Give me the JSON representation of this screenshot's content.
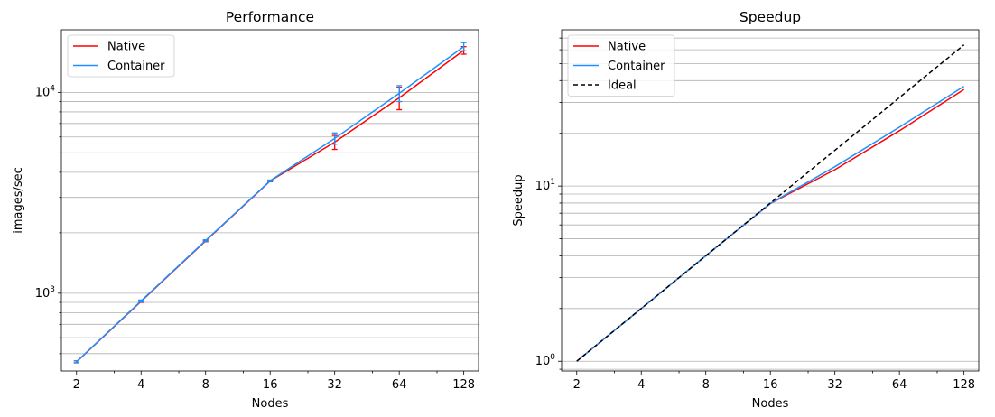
{
  "chart_data": [
    {
      "type": "line",
      "title": "Performance",
      "xlabel": "Nodes",
      "ylabel": "images/sec",
      "xscale": "log2",
      "yscale": "log10",
      "xlim": [
        1.7,
        150
      ],
      "ylim": [
        410,
        20500
      ],
      "x": [
        2,
        4,
        8,
        16,
        32,
        64,
        128
      ],
      "x_tick_labels": [
        "2",
        "4",
        "8",
        "16",
        "32",
        "64",
        "128"
      ],
      "y_ticks": [
        {
          "value": 1000,
          "base": "10",
          "exp": "3"
        },
        {
          "value": 10000,
          "base": "10",
          "exp": "4"
        }
      ],
      "grid": "y",
      "legend": "top-left",
      "series": [
        {
          "name": "Native",
          "color": "#ff0000",
          "values": [
            455,
            910,
            1820,
            3620,
            5650,
            9400,
            16200
          ],
          "errors": [
            5,
            10,
            15,
            30,
            450,
            1200,
            700
          ]
        },
        {
          "name": "Container",
          "color": "#1e90ff",
          "values": [
            456,
            915,
            1830,
            3630,
            5900,
            9900,
            16900
          ],
          "errors": [
            5,
            10,
            15,
            30,
            380,
            900,
            800
          ]
        }
      ]
    },
    {
      "type": "line",
      "title": "Speedup",
      "xlabel": "Nodes",
      "ylabel": "Speedup",
      "xscale": "log2",
      "yscale": "log10",
      "xlim": [
        1.7,
        150
      ],
      "ylim": [
        0.88,
        78
      ],
      "x": [
        2,
        4,
        8,
        16,
        32,
        64,
        128
      ],
      "x_tick_labels": [
        "2",
        "4",
        "8",
        "16",
        "32",
        "64",
        "128"
      ],
      "y_ticks": [
        {
          "value": 1,
          "base": "10",
          "exp": "0"
        },
        {
          "value": 10,
          "base": "10",
          "exp": "1"
        }
      ],
      "grid": "y",
      "legend": "top-left",
      "series": [
        {
          "name": "Native",
          "color": "#ff0000",
          "values": [
            1,
            2,
            4,
            7.95,
            12.4,
            20.7,
            35.6
          ]
        },
        {
          "name": "Container",
          "color": "#1e90ff",
          "values": [
            1,
            2,
            4,
            7.96,
            12.9,
            21.7,
            37.1
          ]
        },
        {
          "name": "Ideal",
          "color": "#000000",
          "dashed": true,
          "values": [
            1,
            2,
            4,
            8,
            16,
            32,
            64
          ]
        }
      ]
    }
  ]
}
